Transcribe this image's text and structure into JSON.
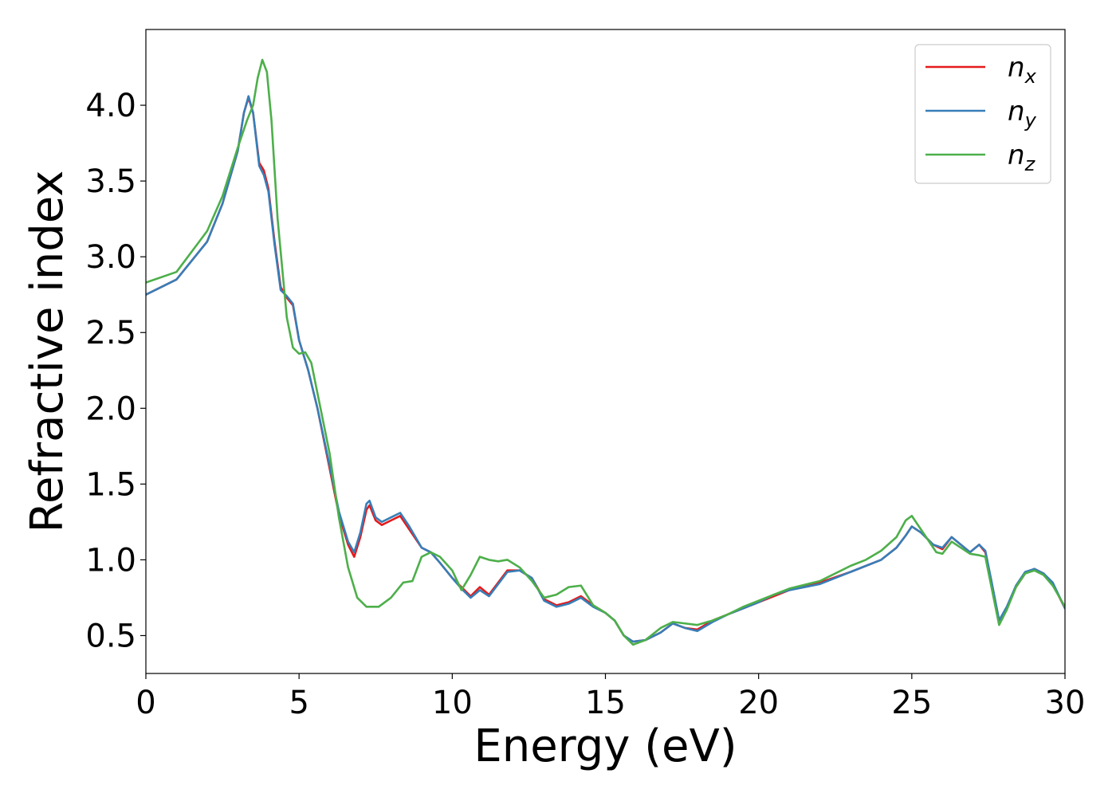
{
  "chart_data": {
    "type": "line",
    "title": "",
    "xlabel": "Energy (eV)",
    "ylabel": "Refractive index",
    "xlim": [
      0,
      30
    ],
    "ylim": [
      0.25,
      4.5
    ],
    "xticks": [
      0,
      5,
      10,
      15,
      20,
      25,
      30
    ],
    "xtick_labels": [
      "0",
      "5",
      "10",
      "15",
      "20",
      "25",
      "30"
    ],
    "yticks": [
      0.5,
      1.0,
      1.5,
      2.0,
      2.5,
      3.0,
      3.5,
      4.0
    ],
    "ytick_labels": [
      "0.5",
      "1.0",
      "1.5",
      "2.0",
      "2.5",
      "3.0",
      "3.5",
      "4.0"
    ],
    "grid": false,
    "legend_position": "top-right",
    "series": [
      {
        "name": "n_x",
        "label_main": "n",
        "label_sub": "x",
        "color": "#e41a1c",
        "x": [
          0,
          1,
          2,
          2.5,
          3,
          3.2,
          3.35,
          3.5,
          3.7,
          3.85,
          4.0,
          4.2,
          4.4,
          4.6,
          4.8,
          5.0,
          5.3,
          5.6,
          6.0,
          6.3,
          6.6,
          6.8,
          7.0,
          7.2,
          7.3,
          7.5,
          7.7,
          8.0,
          8.3,
          8.6,
          9.0,
          9.3,
          9.6,
          10.0,
          10.3,
          10.6,
          10.9,
          11.2,
          11.5,
          11.8,
          12.2,
          12.6,
          13.0,
          13.4,
          13.8,
          14.2,
          14.6,
          15.0,
          15.3,
          15.6,
          15.9,
          16.3,
          16.8,
          17.2,
          17.6,
          18.0,
          18.5,
          19.0,
          19.5,
          20.0,
          20.5,
          21.0,
          22.0,
          23.0,
          23.5,
          24.0,
          24.5,
          24.8,
          25.0,
          25.3,
          25.7,
          26.0,
          26.3,
          26.6,
          26.9,
          27.2,
          27.4,
          27.6,
          27.85,
          28.1,
          28.4,
          28.7,
          29.0,
          29.3,
          29.6,
          30.0
        ],
        "y": [
          2.75,
          2.85,
          3.1,
          3.35,
          3.7,
          3.95,
          4.05,
          3.95,
          3.62,
          3.57,
          3.45,
          3.1,
          2.8,
          2.73,
          2.68,
          2.45,
          2.25,
          2.0,
          1.6,
          1.3,
          1.1,
          1.02,
          1.15,
          1.33,
          1.36,
          1.26,
          1.23,
          1.26,
          1.29,
          1.2,
          1.08,
          1.05,
          0.98,
          0.88,
          0.82,
          0.76,
          0.82,
          0.77,
          0.85,
          0.93,
          0.93,
          0.88,
          0.74,
          0.7,
          0.72,
          0.76,
          0.7,
          0.65,
          0.6,
          0.5,
          0.46,
          0.47,
          0.52,
          0.58,
          0.55,
          0.54,
          0.6,
          0.64,
          0.68,
          0.72,
          0.76,
          0.8,
          0.85,
          0.92,
          0.96,
          1.0,
          1.08,
          1.16,
          1.22,
          1.18,
          1.1,
          1.07,
          1.15,
          1.1,
          1.05,
          1.1,
          1.05,
          0.85,
          0.6,
          0.68,
          0.82,
          0.91,
          0.94,
          0.91,
          0.84,
          0.68
        ]
      },
      {
        "name": "n_y",
        "label_main": "n",
        "label_sub": "y",
        "color": "#377eb8",
        "x": [
          0,
          1,
          2,
          2.5,
          3,
          3.2,
          3.35,
          3.5,
          3.7,
          3.85,
          4.0,
          4.2,
          4.4,
          4.6,
          4.8,
          5.0,
          5.3,
          5.6,
          6.0,
          6.3,
          6.6,
          6.8,
          7.0,
          7.2,
          7.3,
          7.5,
          7.7,
          8.0,
          8.3,
          8.6,
          9.0,
          9.3,
          9.6,
          10.0,
          10.3,
          10.6,
          10.9,
          11.2,
          11.5,
          11.8,
          12.2,
          12.6,
          13.0,
          13.4,
          13.8,
          14.2,
          14.6,
          15.0,
          15.3,
          15.6,
          15.9,
          16.3,
          16.8,
          17.2,
          17.6,
          18.0,
          18.5,
          19.0,
          19.5,
          20.0,
          20.5,
          21.0,
          22.0,
          23.0,
          23.5,
          24.0,
          24.5,
          24.8,
          25.0,
          25.3,
          25.7,
          26.0,
          26.3,
          26.6,
          26.9,
          27.2,
          27.4,
          27.6,
          27.85,
          28.1,
          28.4,
          28.7,
          29.0,
          29.3,
          29.6,
          30.0
        ],
        "y": [
          2.75,
          2.85,
          3.1,
          3.35,
          3.7,
          3.95,
          4.06,
          3.95,
          3.6,
          3.54,
          3.43,
          3.08,
          2.78,
          2.74,
          2.69,
          2.45,
          2.25,
          2.0,
          1.62,
          1.32,
          1.12,
          1.05,
          1.18,
          1.37,
          1.39,
          1.28,
          1.25,
          1.28,
          1.31,
          1.22,
          1.08,
          1.05,
          0.98,
          0.88,
          0.81,
          0.75,
          0.8,
          0.76,
          0.84,
          0.92,
          0.93,
          0.88,
          0.73,
          0.69,
          0.71,
          0.75,
          0.69,
          0.65,
          0.6,
          0.5,
          0.46,
          0.47,
          0.52,
          0.58,
          0.55,
          0.53,
          0.59,
          0.64,
          0.68,
          0.72,
          0.77,
          0.8,
          0.84,
          0.92,
          0.96,
          1.0,
          1.08,
          1.16,
          1.22,
          1.18,
          1.1,
          1.08,
          1.15,
          1.1,
          1.05,
          1.1,
          1.06,
          0.86,
          0.6,
          0.69,
          0.83,
          0.92,
          0.94,
          0.91,
          0.85,
          0.68
        ]
      },
      {
        "name": "n_z",
        "label_main": "n",
        "label_sub": "z",
        "color": "#4daf4a",
        "x": [
          0,
          1,
          2,
          2.5,
          3,
          3.3,
          3.5,
          3.65,
          3.8,
          3.95,
          4.1,
          4.3,
          4.6,
          4.8,
          5.0,
          5.2,
          5.4,
          5.7,
          6.0,
          6.3,
          6.6,
          6.9,
          7.2,
          7.6,
          8.0,
          8.4,
          8.7,
          9.0,
          9.3,
          9.6,
          10.0,
          10.3,
          10.6,
          10.9,
          11.2,
          11.5,
          11.8,
          12.2,
          12.6,
          13.0,
          13.4,
          13.8,
          14.2,
          14.6,
          15.0,
          15.3,
          15.6,
          15.9,
          16.3,
          16.8,
          17.2,
          17.6,
          18.0,
          18.5,
          19.0,
          19.5,
          20.0,
          20.5,
          21.0,
          22.0,
          23.0,
          23.5,
          24.0,
          24.5,
          24.8,
          25.0,
          25.3,
          25.8,
          26.0,
          26.3,
          26.6,
          26.9,
          27.2,
          27.4,
          27.6,
          27.85,
          28.1,
          28.4,
          28.7,
          29.0,
          29.3,
          29.6,
          30.0
        ],
        "y": [
          2.83,
          2.9,
          3.17,
          3.4,
          3.72,
          3.9,
          4.0,
          4.18,
          4.3,
          4.22,
          3.9,
          3.25,
          2.6,
          2.4,
          2.36,
          2.37,
          2.3,
          2.0,
          1.7,
          1.28,
          0.95,
          0.75,
          0.69,
          0.69,
          0.75,
          0.85,
          0.86,
          1.02,
          1.05,
          1.02,
          0.93,
          0.8,
          0.9,
          1.02,
          1.0,
          0.99,
          1.0,
          0.95,
          0.86,
          0.75,
          0.77,
          0.82,
          0.83,
          0.7,
          0.65,
          0.6,
          0.5,
          0.44,
          0.47,
          0.55,
          0.59,
          0.58,
          0.57,
          0.6,
          0.64,
          0.69,
          0.73,
          0.77,
          0.81,
          0.86,
          0.96,
          1.0,
          1.06,
          1.15,
          1.26,
          1.29,
          1.2,
          1.05,
          1.04,
          1.12,
          1.08,
          1.04,
          1.03,
          1.02,
          0.82,
          0.57,
          0.67,
          0.82,
          0.91,
          0.93,
          0.9,
          0.83,
          0.69
        ]
      }
    ]
  }
}
